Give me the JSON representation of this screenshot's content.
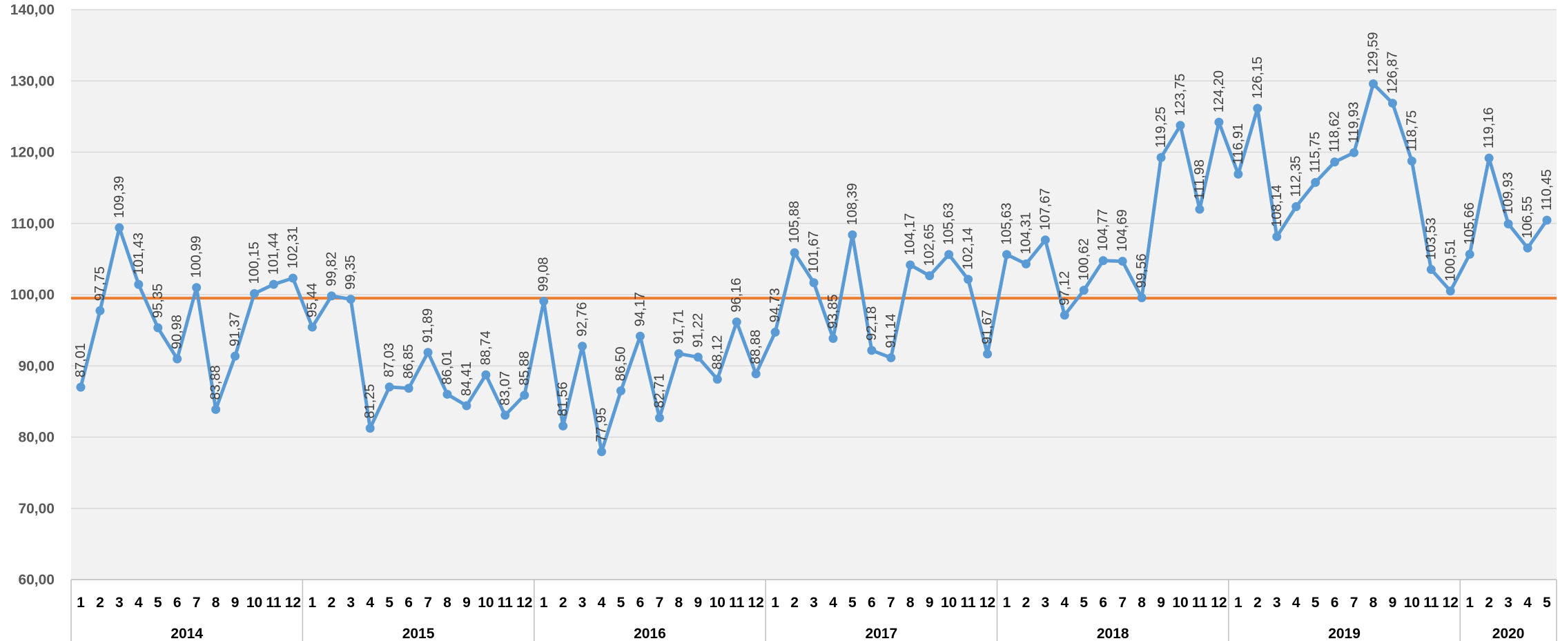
{
  "chart_data": {
    "type": "line",
    "title": "",
    "xlabel": "",
    "ylabel": "",
    "ylim": [
      60,
      140
    ],
    "yticks": [
      "60,00",
      "70,00",
      "80,00",
      "90,00",
      "100,00",
      "110,00",
      "120,00",
      "130,00",
      "140,00"
    ],
    "grid": "horizontal",
    "legend": "none",
    "colors": {
      "series": "#5b9bd5",
      "reference": "#ed7d31",
      "plot_bg": "#f2f2f2",
      "grid": "#d9d9d9",
      "axis": "#bfbfbf"
    },
    "reference_line": {
      "value": 99.5
    },
    "groups": [
      {
        "year": "2014",
        "months": [
          "1",
          "2",
          "3",
          "4",
          "5",
          "6",
          "7",
          "8",
          "9",
          "10",
          "11",
          "12"
        ]
      },
      {
        "year": "2015",
        "months": [
          "1",
          "2",
          "3",
          "4",
          "5",
          "6",
          "7",
          "8",
          "9",
          "10",
          "11",
          "12"
        ]
      },
      {
        "year": "2016",
        "months": [
          "1",
          "2",
          "3",
          "4",
          "5",
          "6",
          "7",
          "8",
          "9",
          "10",
          "11",
          "12"
        ]
      },
      {
        "year": "2017",
        "months": [
          "1",
          "2",
          "3",
          "4",
          "5",
          "6",
          "7",
          "8",
          "9",
          "10",
          "11",
          "12"
        ]
      },
      {
        "year": "2018",
        "months": [
          "1",
          "2",
          "3",
          "4",
          "5",
          "6",
          "7",
          "8",
          "9",
          "10",
          "11",
          "12"
        ]
      },
      {
        "year": "2019",
        "months": [
          "1",
          "2",
          "3",
          "4",
          "5",
          "6",
          "7",
          "8",
          "9",
          "10",
          "11",
          "12"
        ]
      },
      {
        "year": "2020",
        "months": [
          "1",
          "2",
          "3",
          "4",
          "5"
        ]
      }
    ],
    "series": [
      {
        "values": [
          87.01,
          97.75,
          109.39,
          101.43,
          95.35,
          90.98,
          100.99,
          83.88,
          91.37,
          100.15,
          101.44,
          102.31,
          95.44,
          99.82,
          99.35,
          81.25,
          87.03,
          86.85,
          91.89,
          86.01,
          84.41,
          88.74,
          83.07,
          85.88,
          99.08,
          81.56,
          92.76,
          77.95,
          86.5,
          94.17,
          82.71,
          91.71,
          91.22,
          88.12,
          96.16,
          88.88,
          94.73,
          105.88,
          101.67,
          93.85,
          108.39,
          92.18,
          91.14,
          104.17,
          102.65,
          105.63,
          102.14,
          91.67,
          105.63,
          104.31,
          107.67,
          97.12,
          100.62,
          104.77,
          104.69,
          99.56,
          119.25,
          123.75,
          111.98,
          124.2,
          116.91,
          126.15,
          108.14,
          112.35,
          115.75,
          118.62,
          119.93,
          129.59,
          126.87,
          118.75,
          103.53,
          100.51,
          105.66,
          119.16,
          109.93,
          106.55,
          110.45
        ],
        "labels": [
          "87,01",
          "97,75",
          "109,39",
          "101,43",
          "95,35",
          "90,98",
          "100,99",
          "83,88",
          "91,37",
          "100,15",
          "101,44",
          "102,31",
          "95,44",
          "99,82",
          "99,35",
          "81,25",
          "87,03",
          "86,85",
          "91,89",
          "86,01",
          "84,41",
          "88,74",
          "83,07",
          "85,88",
          "99,08",
          "81,56",
          "92,76",
          "77,95",
          "86,50",
          "94,17",
          "82,71",
          "91,71",
          "91,22",
          "88,12",
          "96,16",
          "88,88",
          "94,73",
          "105,88",
          "101,67",
          "93,85",
          "108,39",
          "92,18",
          "91,14",
          "104,17",
          "102,65",
          "105,63",
          "102,14",
          "91,67",
          "105,63",
          "104,31",
          "107,67",
          "97,12",
          "100,62",
          "104,77",
          "104,69",
          "99,56",
          "119,25",
          "123,75",
          "111,98",
          "124,20",
          "116,91",
          "126,15",
          "108,14",
          "112,35",
          "115,75",
          "118,62",
          "119,93",
          "129,59",
          "126,87",
          "118,75",
          "103,53",
          "100,51",
          "105,66",
          "119,16",
          "109,93",
          "106,55",
          "110,45"
        ]
      }
    ]
  }
}
